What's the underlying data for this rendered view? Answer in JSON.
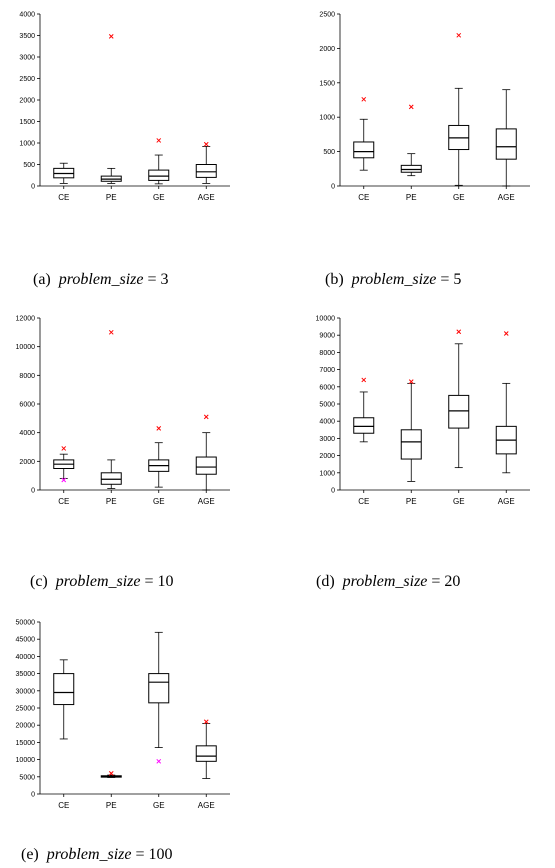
{
  "panels": [
    {
      "caption_prefix": "(a)",
      "caption_var": "problem_size",
      "caption_eq": "= 3",
      "chart_data": {
        "type": "box",
        "categories": [
          "CE",
          "PE",
          "GE",
          "AGE"
        ],
        "yticks": [
          0,
          500,
          1000,
          1500,
          2000,
          2500,
          3000,
          3500,
          4000
        ],
        "ylim": [
          0,
          4000
        ],
        "boxes": [
          {
            "min": 60,
            "q1": 190,
            "median": 290,
            "q3": 410,
            "max": 530
          },
          {
            "min": 60,
            "q1": 110,
            "median": 160,
            "q3": 230,
            "max": 410
          },
          {
            "min": 50,
            "q1": 130,
            "median": 230,
            "q3": 370,
            "max": 720
          },
          {
            "min": 60,
            "q1": 200,
            "median": 330,
            "q3": 500,
            "max": 920
          }
        ],
        "outliers": [
          {
            "category": "PE",
            "value": 3480,
            "color": "#ff0000"
          },
          {
            "category": "GE",
            "value": 1060,
            "color": "#ff0000"
          },
          {
            "category": "AGE",
            "value": 970,
            "color": "#ff0000"
          }
        ]
      }
    },
    {
      "caption_prefix": "(b)",
      "caption_var": "problem_size",
      "caption_eq": "= 5",
      "chart_data": {
        "type": "box",
        "categories": [
          "CE",
          "PE",
          "GE",
          "AGE"
        ],
        "yticks": [
          0,
          500,
          1000,
          1500,
          2000,
          2500
        ],
        "ylim": [
          0,
          2500
        ],
        "boxes": [
          {
            "min": 230,
            "q1": 410,
            "median": 500,
            "q3": 640,
            "max": 970
          },
          {
            "min": 150,
            "q1": 200,
            "median": 240,
            "q3": 300,
            "max": 470
          },
          {
            "min": 10,
            "q1": 530,
            "median": 700,
            "q3": 880,
            "max": 1420
          },
          {
            "min": 0,
            "q1": 390,
            "median": 570,
            "q3": 830,
            "max": 1400
          }
        ],
        "outliers": [
          {
            "category": "CE",
            "value": 1260,
            "color": "#ff0000"
          },
          {
            "category": "PE",
            "value": 1150,
            "color": "#ff0000"
          },
          {
            "category": "GE",
            "value": 2190,
            "color": "#ff0000"
          }
        ]
      }
    },
    {
      "caption_prefix": "(c)",
      "caption_var": "problem_size",
      "caption_eq": "= 10",
      "chart_data": {
        "type": "box",
        "categories": [
          "CE",
          "PE",
          "GE",
          "AGE"
        ],
        "yticks": [
          0,
          2000,
          4000,
          6000,
          8000,
          10000,
          12000
        ],
        "ylim": [
          0,
          12000
        ],
        "boxes": [
          {
            "min": 800,
            "q1": 1500,
            "median": 1800,
            "q3": 2100,
            "max": 2500
          },
          {
            "min": 100,
            "q1": 400,
            "median": 750,
            "q3": 1200,
            "max": 2100
          },
          {
            "min": 200,
            "q1": 1300,
            "median": 1700,
            "q3": 2100,
            "max": 3300
          },
          {
            "min": 0,
            "q1": 1100,
            "median": 1600,
            "q3": 2300,
            "max": 4000
          }
        ],
        "outliers": [
          {
            "category": "CE",
            "value": 2900,
            "color": "#ff0000"
          },
          {
            "category": "CE",
            "value": 700,
            "color": "#ff00ff"
          },
          {
            "category": "PE",
            "value": 11000,
            "color": "#ff0000"
          },
          {
            "category": "GE",
            "value": 4300,
            "color": "#ff0000"
          },
          {
            "category": "AGE",
            "value": 5100,
            "color": "#ff0000"
          }
        ]
      }
    },
    {
      "caption_prefix": "(d)",
      "caption_var": "problem_size",
      "caption_eq": "= 20",
      "chart_data": {
        "type": "box",
        "categories": [
          "CE",
          "PE",
          "GE",
          "AGE"
        ],
        "yticks": [
          0,
          1000,
          2000,
          3000,
          4000,
          5000,
          6000,
          7000,
          8000,
          9000,
          10000
        ],
        "ylim": [
          0,
          10000
        ],
        "boxes": [
          {
            "min": 2800,
            "q1": 3300,
            "median": 3700,
            "q3": 4200,
            "max": 5700
          },
          {
            "min": 500,
            "q1": 1800,
            "median": 2800,
            "q3": 3500,
            "max": 6200
          },
          {
            "min": 1300,
            "q1": 3600,
            "median": 4600,
            "q3": 5500,
            "max": 8500
          },
          {
            "min": 1000,
            "q1": 2100,
            "median": 2900,
            "q3": 3700,
            "max": 6200
          }
        ],
        "outliers": [
          {
            "category": "CE",
            "value": 6400,
            "color": "#ff0000"
          },
          {
            "category": "PE",
            "value": 6300,
            "color": "#ff0000"
          },
          {
            "category": "GE",
            "value": 9200,
            "color": "#ff0000"
          },
          {
            "category": "AGE",
            "value": 9100,
            "color": "#ff0000"
          }
        ]
      }
    },
    {
      "caption_prefix": "(e)",
      "caption_var": "problem_size",
      "caption_eq": "= 100",
      "chart_data": {
        "type": "box",
        "categories": [
          "CE",
          "PE",
          "GE",
          "AGE"
        ],
        "yticks": [
          0,
          5000,
          10000,
          15000,
          20000,
          25000,
          30000,
          35000,
          40000,
          45000,
          50000
        ],
        "ylim": [
          0,
          50000
        ],
        "boxes": [
          {
            "min": 16000,
            "q1": 26000,
            "median": 29500,
            "q3": 35000,
            "max": 39000
          },
          {
            "min": 4800,
            "q1": 4900,
            "median": 5100,
            "q3": 5300,
            "max": 5500
          },
          {
            "min": 13500,
            "q1": 26500,
            "median": 32500,
            "q3": 35000,
            "max": 47000
          },
          {
            "min": 4500,
            "q1": 9500,
            "median": 11000,
            "q3": 14000,
            "max": 20500
          }
        ],
        "outliers": [
          {
            "category": "PE",
            "value": 6000,
            "color": "#ff0000"
          },
          {
            "category": "GE",
            "value": 9500,
            "color": "#ff00ff"
          },
          {
            "category": "AGE",
            "value": 21000,
            "color": "#ff0000"
          }
        ]
      }
    }
  ]
}
